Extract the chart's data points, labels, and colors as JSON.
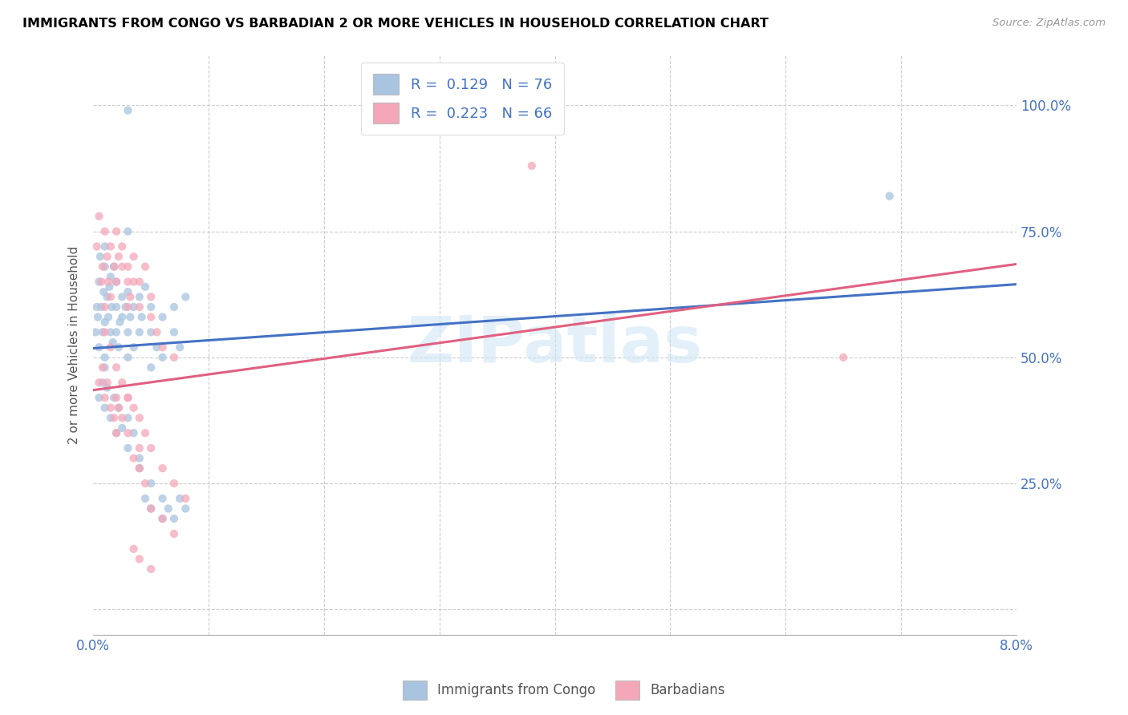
{
  "title": "IMMIGRANTS FROM CONGO VS BARBADIAN 2 OR MORE VEHICLES IN HOUSEHOLD CORRELATION CHART",
  "source": "Source: ZipAtlas.com",
  "ylabel": "2 or more Vehicles in Household",
  "ytick_labels": [
    "",
    "25.0%",
    "50.0%",
    "75.0%",
    "100.0%"
  ],
  "ytick_values": [
    0.0,
    0.25,
    0.5,
    0.75,
    1.0
  ],
  "xlim": [
    0.0,
    0.08
  ],
  "ylim": [
    -0.05,
    1.1
  ],
  "r_congo": 0.129,
  "n_congo": 76,
  "r_barbadian": 0.223,
  "n_barbadian": 66,
  "color_congo": "#a8c4e0",
  "color_barbadian": "#f4a7b9",
  "line_color_congo": "#4472c4",
  "line_color_barbadian": "#e06080",
  "scatter_alpha": 0.75,
  "scatter_size": 55,
  "congo_line_x": [
    0.0,
    0.08
  ],
  "congo_line_y": [
    0.518,
    0.645
  ],
  "barbadian_line_x": [
    0.0,
    0.08
  ],
  "barbadian_line_y": [
    0.435,
    0.685
  ],
  "congo_x": [
    0.0002,
    0.0003,
    0.0004,
    0.0005,
    0.0005,
    0.0006,
    0.0007,
    0.0008,
    0.0009,
    0.001,
    0.001,
    0.001,
    0.001,
    0.0012,
    0.0013,
    0.0014,
    0.0015,
    0.0015,
    0.0016,
    0.0017,
    0.0018,
    0.002,
    0.002,
    0.002,
    0.0022,
    0.0023,
    0.0025,
    0.0025,
    0.0028,
    0.003,
    0.003,
    0.003,
    0.0032,
    0.0035,
    0.0035,
    0.004,
    0.004,
    0.0042,
    0.0045,
    0.005,
    0.005,
    0.005,
    0.0055,
    0.006,
    0.006,
    0.007,
    0.007,
    0.0075,
    0.008,
    0.069,
    0.0005,
    0.0008,
    0.001,
    0.001,
    0.0012,
    0.0015,
    0.0018,
    0.002,
    0.0022,
    0.0025,
    0.003,
    0.003,
    0.0035,
    0.004,
    0.004,
    0.0045,
    0.005,
    0.005,
    0.006,
    0.006,
    0.0065,
    0.007,
    0.0075,
    0.008,
    0.003,
    0.003
  ],
  "congo_y": [
    0.55,
    0.6,
    0.58,
    0.65,
    0.52,
    0.7,
    0.6,
    0.55,
    0.63,
    0.68,
    0.57,
    0.72,
    0.5,
    0.62,
    0.58,
    0.64,
    0.66,
    0.55,
    0.6,
    0.53,
    0.68,
    0.6,
    0.55,
    0.65,
    0.52,
    0.57,
    0.58,
    0.62,
    0.6,
    0.63,
    0.55,
    0.5,
    0.58,
    0.52,
    0.6,
    0.55,
    0.62,
    0.58,
    0.64,
    0.6,
    0.55,
    0.48,
    0.52,
    0.5,
    0.58,
    0.6,
    0.55,
    0.52,
    0.62,
    0.82,
    0.42,
    0.45,
    0.4,
    0.48,
    0.44,
    0.38,
    0.42,
    0.35,
    0.4,
    0.36,
    0.38,
    0.32,
    0.35,
    0.3,
    0.28,
    0.22,
    0.2,
    0.25,
    0.18,
    0.22,
    0.2,
    0.18,
    0.22,
    0.2,
    0.99,
    0.75
  ],
  "barbadian_x": [
    0.0003,
    0.0005,
    0.0007,
    0.0008,
    0.001,
    0.001,
    0.0012,
    0.0013,
    0.0015,
    0.0015,
    0.0018,
    0.002,
    0.002,
    0.0022,
    0.0025,
    0.0025,
    0.003,
    0.003,
    0.003,
    0.0032,
    0.0035,
    0.0035,
    0.004,
    0.004,
    0.0045,
    0.005,
    0.005,
    0.0055,
    0.006,
    0.007,
    0.0005,
    0.0008,
    0.001,
    0.0012,
    0.0015,
    0.0018,
    0.002,
    0.002,
    0.0022,
    0.0025,
    0.003,
    0.003,
    0.0035,
    0.004,
    0.004,
    0.0045,
    0.005,
    0.006,
    0.007,
    0.038,
    0.065,
    0.001,
    0.0015,
    0.002,
    0.0025,
    0.003,
    0.0035,
    0.004,
    0.0045,
    0.005,
    0.006,
    0.007,
    0.008,
    0.0035,
    0.004,
    0.005
  ],
  "barbadian_y": [
    0.72,
    0.78,
    0.65,
    0.68,
    0.75,
    0.6,
    0.7,
    0.65,
    0.72,
    0.62,
    0.68,
    0.75,
    0.65,
    0.7,
    0.68,
    0.72,
    0.65,
    0.6,
    0.68,
    0.62,
    0.65,
    0.7,
    0.65,
    0.6,
    0.68,
    0.62,
    0.58,
    0.55,
    0.52,
    0.5,
    0.45,
    0.48,
    0.42,
    0.45,
    0.4,
    0.38,
    0.42,
    0.35,
    0.4,
    0.38,
    0.42,
    0.35,
    0.3,
    0.32,
    0.28,
    0.25,
    0.2,
    0.18,
    0.15,
    0.88,
    0.5,
    0.55,
    0.52,
    0.48,
    0.45,
    0.42,
    0.4,
    0.38,
    0.35,
    0.32,
    0.28,
    0.25,
    0.22,
    0.12,
    0.1,
    0.08
  ]
}
